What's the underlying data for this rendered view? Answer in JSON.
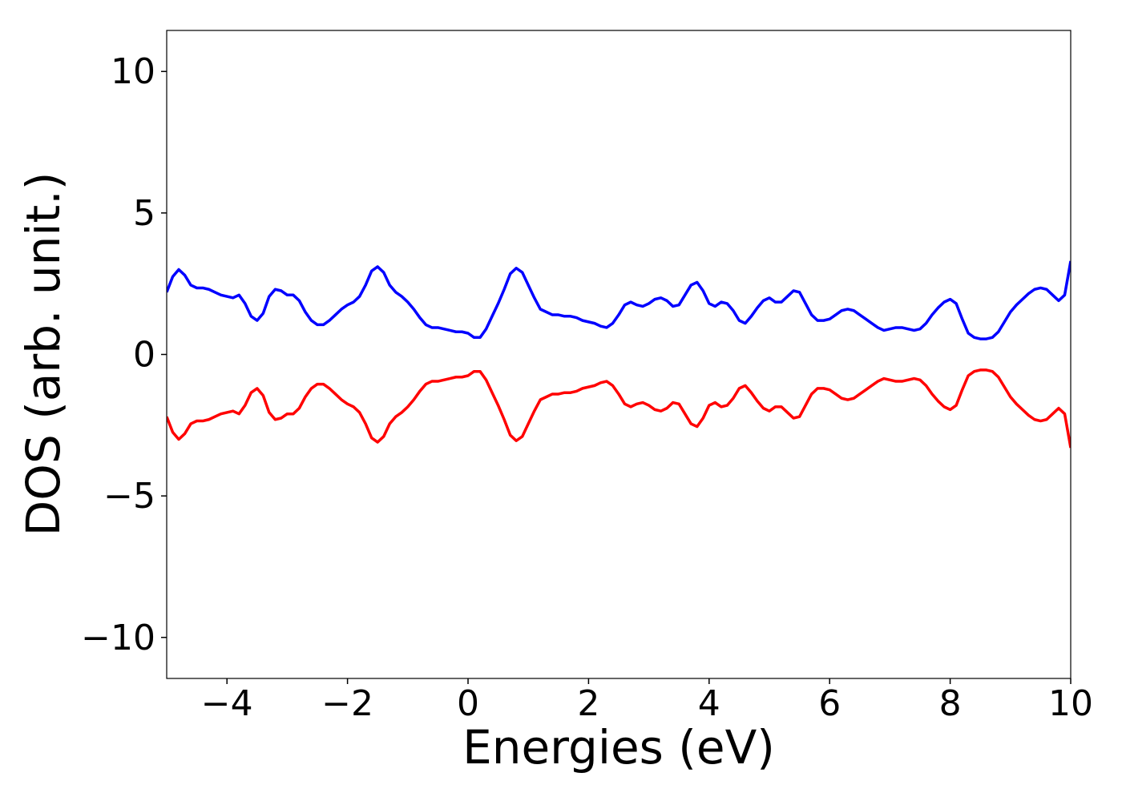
{
  "chart_data": {
    "type": "line",
    "xlabel": "Energies (eV)",
    "ylabel": "DOS (arb. unit.)",
    "xlim": [
      -5,
      10
    ],
    "ylim": [
      -11.45,
      11.45
    ],
    "xticks": [
      {
        "value": -4,
        "label": "−4"
      },
      {
        "value": -2,
        "label": "−2"
      },
      0,
      2,
      4,
      6,
      8,
      10
    ],
    "yticks": [
      {
        "value": -10,
        "label": "−10"
      },
      {
        "value": -5,
        "label": "−5"
      },
      0,
      5,
      10
    ],
    "grid": false,
    "x": [
      -5,
      -4.9,
      -4.8,
      -4.7,
      -4.6,
      -4.5,
      -4.4,
      -4.3,
      -4.2,
      -4.1,
      -4,
      -3.9,
      -3.8,
      -3.7,
      -3.6,
      -3.5,
      -3.4,
      -3.3,
      -3.2,
      -3.1,
      -3,
      -2.9,
      -2.8,
      -2.7,
      -2.6,
      -2.5,
      -2.4,
      -2.3,
      -2.2,
      -2.1,
      -2,
      -1.9,
      -1.8,
      -1.7,
      -1.6,
      -1.5,
      -1.4,
      -1.3,
      -1.2,
      -1.1,
      -1,
      -0.9,
      -0.8,
      -0.7,
      -0.6,
      -0.5,
      -0.4,
      -0.3,
      -0.2,
      -0.1,
      0,
      0.1,
      0.2,
      0.3,
      0.4,
      0.5,
      0.6,
      0.7,
      0.8,
      0.9,
      1,
      1.1,
      1.2,
      1.3,
      1.4,
      1.5,
      1.6,
      1.7,
      1.8,
      1.9,
      2,
      2.1,
      2.2,
      2.3,
      2.4,
      2.5,
      2.6,
      2.7,
      2.8,
      2.9,
      3,
      3.1,
      3.2,
      3.3,
      3.4,
      3.5,
      3.6,
      3.7,
      3.8,
      3.9,
      4,
      4.1,
      4.2,
      4.3,
      4.4,
      4.5,
      4.6,
      4.7,
      4.8,
      4.9,
      5,
      5.1,
      5.2,
      5.3,
      5.4,
      5.5,
      5.6,
      5.7,
      5.8,
      5.9,
      6,
      6.1,
      6.2,
      6.3,
      6.4,
      6.5,
      6.6,
      6.7,
      6.8,
      6.9,
      7,
      7.1,
      7.2,
      7.3,
      7.4,
      7.5,
      7.6,
      7.7,
      7.8,
      7.9,
      8,
      8.1,
      8.2,
      8.3,
      8.4,
      8.5,
      8.6,
      8.7,
      8.8,
      8.9,
      9,
      9.1,
      9.2,
      9.3,
      9.4,
      9.5,
      9.6,
      9.7,
      9.8,
      9.9,
      10
    ],
    "series": [
      {
        "color": "#0000ff",
        "values": [
          2.2,
          2.75,
          3.0,
          2.8,
          2.45,
          2.35,
          2.35,
          2.3,
          2.2,
          2.1,
          2.05,
          2.0,
          2.1,
          1.8,
          1.35,
          1.2,
          1.45,
          2.05,
          2.3,
          2.25,
          2.1,
          2.1,
          1.9,
          1.5,
          1.2,
          1.05,
          1.05,
          1.2,
          1.4,
          1.6,
          1.75,
          1.85,
          2.05,
          2.45,
          2.95,
          3.1,
          2.9,
          2.45,
          2.2,
          2.05,
          1.85,
          1.6,
          1.3,
          1.05,
          0.95,
          0.95,
          0.9,
          0.85,
          0.8,
          0.8,
          0.75,
          0.6,
          0.6,
          0.9,
          1.35,
          1.8,
          2.3,
          2.85,
          3.05,
          2.9,
          2.45,
          2.0,
          1.6,
          1.5,
          1.4,
          1.4,
          1.35,
          1.35,
          1.3,
          1.2,
          1.15,
          1.1,
          1.0,
          0.95,
          1.1,
          1.4,
          1.75,
          1.85,
          1.75,
          1.7,
          1.8,
          1.95,
          2.0,
          1.9,
          1.7,
          1.75,
          2.1,
          2.45,
          2.55,
          2.25,
          1.8,
          1.7,
          1.85,
          1.8,
          1.55,
          1.2,
          1.1,
          1.35,
          1.65,
          1.9,
          2.0,
          1.85,
          1.85,
          2.05,
          2.25,
          2.2,
          1.8,
          1.4,
          1.2,
          1.2,
          1.25,
          1.4,
          1.55,
          1.6,
          1.55,
          1.4,
          1.25,
          1.1,
          0.95,
          0.85,
          0.9,
          0.95,
          0.95,
          0.9,
          0.85,
          0.9,
          1.1,
          1.4,
          1.65,
          1.85,
          1.95,
          1.8,
          1.25,
          0.75,
          0.6,
          0.55,
          0.55,
          0.6,
          0.8,
          1.15,
          1.5,
          1.75,
          1.95,
          2.15,
          2.3,
          2.35,
          2.3,
          2.1,
          1.9,
          2.1,
          3.3
        ]
      },
      {
        "color": "#ff0000",
        "values": [
          -2.2,
          -2.75,
          -3.0,
          -2.8,
          -2.45,
          -2.35,
          -2.35,
          -2.3,
          -2.2,
          -2.1,
          -2.05,
          -2.0,
          -2.1,
          -1.8,
          -1.35,
          -1.2,
          -1.45,
          -2.05,
          -2.3,
          -2.25,
          -2.1,
          -2.1,
          -1.9,
          -1.5,
          -1.2,
          -1.05,
          -1.05,
          -1.2,
          -1.4,
          -1.6,
          -1.75,
          -1.85,
          -2.05,
          -2.45,
          -2.95,
          -3.1,
          -2.9,
          -2.45,
          -2.2,
          -2.05,
          -1.85,
          -1.6,
          -1.3,
          -1.05,
          -0.95,
          -0.95,
          -0.9,
          -0.85,
          -0.8,
          -0.8,
          -0.75,
          -0.6,
          -0.6,
          -0.9,
          -1.35,
          -1.8,
          -2.3,
          -2.85,
          -3.05,
          -2.9,
          -2.45,
          -2.0,
          -1.6,
          -1.5,
          -1.4,
          -1.4,
          -1.35,
          -1.35,
          -1.3,
          -1.2,
          -1.15,
          -1.1,
          -1.0,
          -0.95,
          -1.1,
          -1.4,
          -1.75,
          -1.85,
          -1.75,
          -1.7,
          -1.8,
          -1.95,
          -2.0,
          -1.9,
          -1.7,
          -1.75,
          -2.1,
          -2.45,
          -2.55,
          -2.25,
          -1.8,
          -1.7,
          -1.85,
          -1.8,
          -1.55,
          -1.2,
          -1.1,
          -1.35,
          -1.65,
          -1.9,
          -2.0,
          -1.85,
          -1.85,
          -2.05,
          -2.25,
          -2.2,
          -1.8,
          -1.4,
          -1.2,
          -1.2,
          -1.25,
          -1.4,
          -1.55,
          -1.6,
          -1.55,
          -1.4,
          -1.25,
          -1.1,
          -0.95,
          -0.85,
          -0.9,
          -0.95,
          -0.95,
          -0.9,
          -0.85,
          -0.9,
          -1.1,
          -1.4,
          -1.65,
          -1.85,
          -1.95,
          -1.8,
          -1.25,
          -0.75,
          -0.6,
          -0.55,
          -0.55,
          -0.6,
          -0.8,
          -1.15,
          -1.5,
          -1.75,
          -1.95,
          -2.15,
          -2.3,
          -2.35,
          -2.3,
          -2.1,
          -1.9,
          -2.1,
          -3.3
        ]
      }
    ]
  }
}
